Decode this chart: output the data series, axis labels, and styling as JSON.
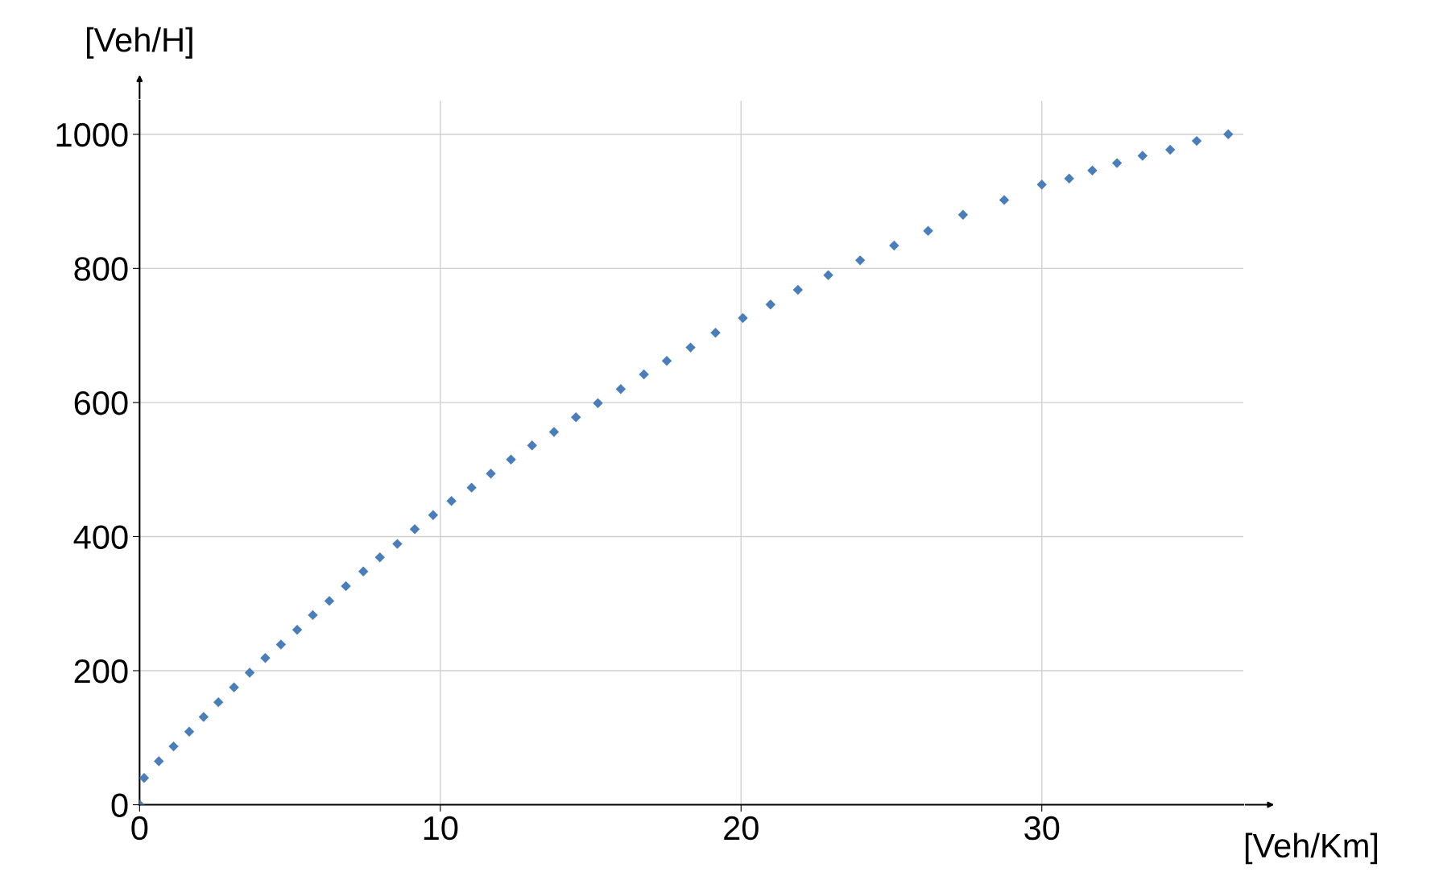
{
  "chart_data": {
    "type": "scatter",
    "xlabel": "[Veh/Km]",
    "ylabel": "[Veh/H]",
    "x": [
      0,
      0.15,
      0.64,
      1.13,
      1.65,
      2.13,
      2.62,
      3.14,
      3.66,
      4.18,
      4.7,
      5.24,
      5.76,
      6.31,
      6.86,
      7.44,
      7.99,
      8.57,
      9.15,
      9.76,
      10.37,
      11.04,
      11.68,
      12.35,
      13.05,
      13.78,
      14.51,
      15.24,
      16.0,
      16.77,
      17.53,
      18.32,
      19.15,
      20.06,
      20.98,
      21.89,
      22.9,
      23.96,
      25.09,
      26.22,
      27.38,
      28.75,
      30.0,
      30.91,
      31.68,
      32.5,
      33.35,
      34.27,
      35.15,
      36.2
    ],
    "series": [
      {
        "color": "#4a7ebb",
        "values": [
          0,
          40,
          65,
          87,
          109,
          131,
          153,
          175,
          197,
          219,
          239,
          261,
          283,
          304,
          326,
          348,
          369,
          389,
          411,
          432,
          453,
          473,
          494,
          515,
          536,
          556,
          578,
          599,
          620,
          642,
          662,
          682,
          704,
          726,
          746,
          768,
          790,
          812,
          834,
          856,
          880,
          902,
          925,
          934,
          946,
          957,
          968,
          977,
          990,
          1000
        ]
      }
    ],
    "xlim": [
      0,
      36.7
    ],
    "ylim": [
      0,
      1050
    ],
    "xticks": [
      0,
      10,
      20,
      30
    ],
    "yticks": [
      0,
      200,
      400,
      600,
      800,
      1000
    ],
    "grid": true,
    "marker": "diamond"
  }
}
